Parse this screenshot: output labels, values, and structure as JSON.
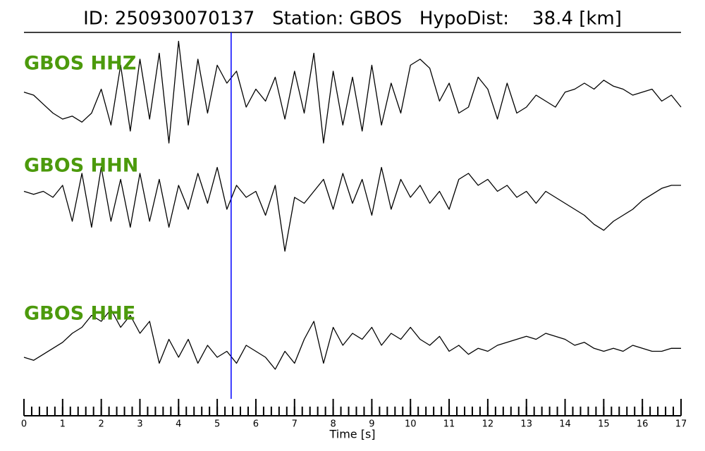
{
  "chart_data": {
    "type": "line",
    "title": "ID: 250930070137   Station: GBOS   HypoDist:    38.4 [km]",
    "xlabel": "Time [s]",
    "x": [
      0,
      0.25,
      0.5,
      0.75,
      1,
      1.25,
      1.5,
      1.75,
      2,
      2.25,
      2.5,
      2.75,
      3,
      3.25,
      3.5,
      3.75,
      4,
      4.25,
      4.5,
      4.75,
      5,
      5.25,
      5.5,
      5.75,
      6,
      6.25,
      6.5,
      6.75,
      7,
      7.25,
      7.5,
      7.75,
      8,
      8.25,
      8.5,
      8.75,
      9,
      9.25,
      9.5,
      9.75,
      10,
      10.25,
      10.5,
      10.75,
      11,
      11.25,
      11.5,
      11.75,
      12,
      12.25,
      12.5,
      12.75,
      13,
      13.25,
      13.5,
      13.75,
      14,
      14.25,
      14.5,
      14.75,
      15,
      15.25,
      15.5,
      15.75,
      16,
      16.25,
      16.5,
      16.75,
      17
    ],
    "xlim": [
      0,
      17
    ],
    "xticks": [
      0,
      1,
      2,
      3,
      4,
      5,
      6,
      7,
      8,
      9,
      10,
      11,
      12,
      13,
      14,
      15,
      16,
      17
    ],
    "xminor_step": 0.2,
    "ylim": [
      -1,
      1
    ],
    "label_color": "#4c9a0c",
    "series": [
      {
        "name": "GBOS HHZ",
        "color": "#000000",
        "values": [
          0.05,
          0.0,
          -0.15,
          -0.3,
          -0.4,
          -0.35,
          -0.45,
          -0.3,
          0.1,
          -0.5,
          0.5,
          -0.6,
          0.6,
          -0.4,
          0.7,
          -0.8,
          0.9,
          -0.5,
          0.6,
          -0.3,
          0.5,
          0.2,
          0.4,
          -0.2,
          0.1,
          -0.1,
          0.3,
          -0.4,
          0.4,
          -0.3,
          0.7,
          -0.8,
          0.4,
          -0.5,
          0.3,
          -0.6,
          0.5,
          -0.5,
          0.2,
          -0.3,
          0.5,
          0.6,
          0.45,
          -0.1,
          0.2,
          -0.3,
          -0.2,
          0.3,
          0.1,
          -0.4,
          0.2,
          -0.3,
          -0.2,
          0.0,
          -0.1,
          -0.2,
          0.05,
          0.1,
          0.2,
          0.1,
          0.25,
          0.15,
          0.1,
          0.0,
          0.05,
          0.1,
          -0.1,
          0.0,
          -0.2
        ]
      },
      {
        "name": "GBOS HHN",
        "color": "#000000",
        "values": [
          0.1,
          0.05,
          0.1,
          0.0,
          0.2,
          -0.4,
          0.4,
          -0.5,
          0.5,
          -0.4,
          0.3,
          -0.5,
          0.4,
          -0.4,
          0.3,
          -0.5,
          0.2,
          -0.2,
          0.4,
          -0.1,
          0.5,
          -0.2,
          0.2,
          0.0,
          0.1,
          -0.3,
          0.2,
          -0.9,
          0.0,
          -0.1,
          0.1,
          0.3,
          -0.2,
          0.4,
          -0.1,
          0.3,
          -0.3,
          0.5,
          -0.2,
          0.3,
          0.0,
          0.2,
          -0.1,
          0.1,
          -0.2,
          0.3,
          0.4,
          0.2,
          0.3,
          0.1,
          0.2,
          0.0,
          0.1,
          -0.1,
          0.1,
          0.0,
          -0.1,
          -0.2,
          -0.3,
          -0.45,
          -0.55,
          -0.4,
          -0.3,
          -0.2,
          -0.05,
          0.05,
          0.15,
          0.2,
          0.2
        ]
      },
      {
        "name": "GBOS HHE",
        "color": "#000000",
        "values": [
          -0.2,
          -0.25,
          -0.15,
          -0.05,
          0.05,
          0.2,
          0.3,
          0.5,
          0.4,
          0.6,
          0.3,
          0.5,
          0.2,
          0.4,
          -0.3,
          0.1,
          -0.2,
          0.1,
          -0.3,
          0.0,
          -0.2,
          -0.1,
          -0.3,
          0.0,
          -0.1,
          -0.2,
          -0.4,
          -0.1,
          -0.3,
          0.1,
          0.4,
          -0.3,
          0.3,
          0.0,
          0.2,
          0.1,
          0.3,
          0.0,
          0.2,
          0.1,
          0.3,
          0.1,
          0.0,
          0.15,
          -0.1,
          0.0,
          -0.15,
          -0.05,
          -0.1,
          0.0,
          0.05,
          0.1,
          0.15,
          0.1,
          0.2,
          0.15,
          0.1,
          0.0,
          0.05,
          -0.05,
          -0.1,
          -0.05,
          -0.1,
          0.0,
          -0.05,
          -0.1,
          -0.1,
          -0.05,
          -0.05
        ]
      }
    ],
    "markers": [
      {
        "x": 5.36,
        "color": "#0000ff"
      }
    ]
  }
}
